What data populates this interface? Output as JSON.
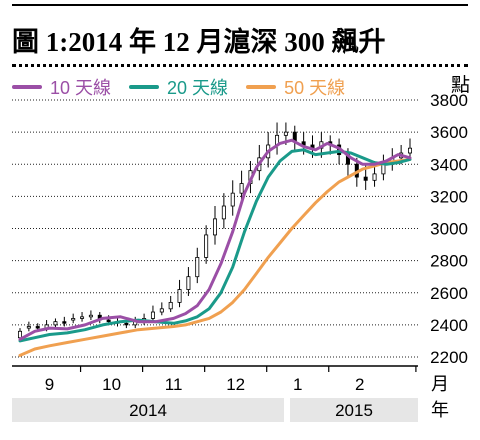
{
  "title": "圖 1:2014 年 12 月滬深 300 飆升",
  "y_unit": "點",
  "x_unit": "月",
  "year_unit": "年",
  "colors": {
    "ma10": "#9b4fa6",
    "ma20": "#1a9a8a",
    "ma50": "#f0a050",
    "candle": "#000000",
    "band": "#e6e6e6"
  },
  "chart_data": {
    "type": "line",
    "title": "圖 1:2014 年 12 月滬深 300 飆升",
    "ylabel": "點",
    "xlabel": "月",
    "ylim": [
      2200,
      3800
    ],
    "yticks": [
      2200,
      2400,
      2600,
      2800,
      3000,
      3200,
      3400,
      3600,
      3800
    ],
    "month_labels": [
      "9",
      "10",
      "11",
      "12",
      "1",
      "2"
    ],
    "year_labels": [
      "2014",
      "2015"
    ],
    "legend": [
      "10 天線",
      "20 天線",
      "50 天線"
    ],
    "x_range": [
      0,
      132
    ],
    "month_positions": [
      10,
      31,
      52,
      73,
      94,
      115
    ],
    "year_positions": [
      31,
      104
    ],
    "series": [
      {
        "name": "10 天線",
        "x": [
          0,
          5,
          10,
          16,
          22,
          28,
          34,
          40,
          46,
          52,
          56,
          60,
          64,
          68,
          72,
          76,
          80,
          84,
          88,
          92,
          96,
          100,
          104,
          108,
          112,
          116,
          120,
          124,
          128,
          132
        ],
        "values": [
          2310,
          2360,
          2380,
          2375,
          2400,
          2440,
          2450,
          2420,
          2420,
          2440,
          2470,
          2520,
          2620,
          2780,
          2980,
          3220,
          3380,
          3480,
          3530,
          3550,
          3510,
          3490,
          3530,
          3500,
          3440,
          3400,
          3400,
          3420,
          3460,
          3440
        ]
      },
      {
        "name": "20 天線",
        "x": [
          0,
          5,
          10,
          16,
          22,
          28,
          34,
          40,
          46,
          52,
          56,
          60,
          64,
          68,
          72,
          76,
          80,
          84,
          88,
          92,
          96,
          100,
          104,
          108,
          112,
          116,
          120,
          124,
          128,
          132
        ],
        "values": [
          2300,
          2320,
          2340,
          2350,
          2370,
          2400,
          2420,
          2430,
          2420,
          2410,
          2425,
          2450,
          2500,
          2600,
          2760,
          2980,
          3170,
          3320,
          3420,
          3480,
          3490,
          3460,
          3470,
          3480,
          3470,
          3440,
          3410,
          3400,
          3410,
          3430
        ]
      },
      {
        "name": "50 天線",
        "x": [
          0,
          5,
          10,
          16,
          22,
          28,
          34,
          40,
          46,
          52,
          56,
          60,
          64,
          68,
          72,
          76,
          80,
          84,
          88,
          92,
          96,
          100,
          104,
          108,
          112,
          116,
          120,
          124,
          128,
          132
        ],
        "values": [
          2210,
          2250,
          2270,
          2290,
          2310,
          2330,
          2350,
          2370,
          2380,
          2390,
          2400,
          2420,
          2440,
          2480,
          2540,
          2620,
          2720,
          2820,
          2910,
          3000,
          3080,
          3160,
          3230,
          3290,
          3330,
          3370,
          3390,
          3410,
          3420,
          3430
        ]
      },
      {
        "name": "candles",
        "x": [
          0,
          3,
          6,
          9,
          12,
          15,
          18,
          21,
          24,
          27,
          30,
          33,
          36,
          39,
          42,
          45,
          48,
          51,
          54,
          57,
          60,
          63,
          66,
          69,
          72,
          75,
          78,
          81,
          84,
          87,
          90,
          93,
          96,
          99,
          102,
          105,
          108,
          111,
          114,
          117,
          120,
          123,
          126,
          129,
          132
        ],
        "open": [
          2320,
          2380,
          2390,
          2380,
          2400,
          2420,
          2430,
          2440,
          2450,
          2460,
          2430,
          2420,
          2410,
          2400,
          2420,
          2440,
          2480,
          2500,
          2540,
          2620,
          2700,
          2820,
          2960,
          3060,
          3140,
          3220,
          3280,
          3360,
          3440,
          3520,
          3580,
          3600,
          3540,
          3520,
          3500,
          3540,
          3520,
          3460,
          3400,
          3320,
          3300,
          3340,
          3400,
          3440,
          3470
        ],
        "close": [
          2360,
          2390,
          2380,
          2400,
          2420,
          2410,
          2440,
          2450,
          2460,
          2430,
          2420,
          2410,
          2400,
          2420,
          2440,
          2480,
          2500,
          2540,
          2620,
          2700,
          2820,
          2960,
          3060,
          3140,
          3220,
          3280,
          3360,
          3440,
          3520,
          3580,
          3600,
          3540,
          3520,
          3500,
          3540,
          3520,
          3460,
          3400,
          3320,
          3300,
          3340,
          3400,
          3440,
          3470,
          3500
        ],
        "high": [
          2380,
          2420,
          2410,
          2430,
          2440,
          2450,
          2470,
          2480,
          2490,
          2480,
          2460,
          2440,
          2430,
          2450,
          2470,
          2520,
          2540,
          2580,
          2680,
          2760,
          2880,
          3020,
          3140,
          3220,
          3300,
          3360,
          3420,
          3520,
          3600,
          3660,
          3660,
          3640,
          3600,
          3580,
          3600,
          3580,
          3560,
          3500,
          3440,
          3400,
          3420,
          3460,
          3500,
          3520,
          3560
        ],
        "low": [
          2300,
          2360,
          2360,
          2360,
          2380,
          2390,
          2410,
          2420,
          2430,
          2410,
          2400,
          2390,
          2380,
          2380,
          2400,
          2420,
          2460,
          2480,
          2510,
          2580,
          2660,
          2780,
          2900,
          3000,
          3080,
          3160,
          3220,
          3300,
          3380,
          3460,
          3520,
          3480,
          3460,
          3440,
          3440,
          3460,
          3400,
          3320,
          3260,
          3240,
          3260,
          3300,
          3360,
          3400,
          3430
        ]
      }
    ]
  }
}
